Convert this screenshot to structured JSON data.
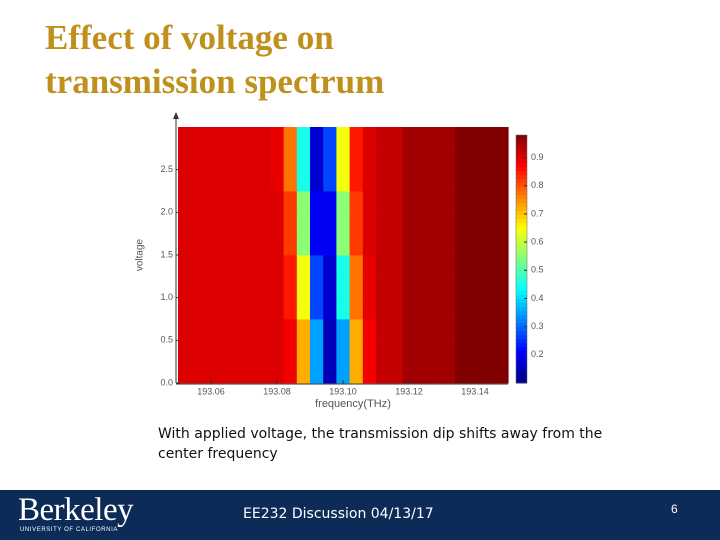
{
  "title": "Effect of voltage on transmission spectrum",
  "chart_data": {
    "type": "heatmap",
    "xlabel": "frequency(THz)",
    "ylabel": "voltage",
    "x": [
      193.052,
      193.056,
      193.06,
      193.064,
      193.068,
      193.072,
      193.076,
      193.08,
      193.084,
      193.088,
      193.092,
      193.096,
      193.1,
      193.104,
      193.108,
      193.112,
      193.116,
      193.12,
      193.124,
      193.128,
      193.132,
      193.136,
      193.14,
      193.144,
      193.148
    ],
    "y": [
      0.125,
      0.375,
      0.625,
      0.875,
      1.125,
      1.375,
      1.625,
      1.875,
      2.125,
      2.375,
      2.625,
      2.875
    ],
    "z": [
      [
        0.9,
        0.9,
        0.9,
        0.9,
        0.9,
        0.9,
        0.9,
        0.9,
        0.88,
        0.72,
        0.35,
        0.15,
        0.35,
        0.72,
        0.88,
        0.92,
        0.92,
        0.95,
        0.95,
        0.95,
        0.95,
        0.98,
        0.98,
        0.98,
        0.98
      ],
      [
        0.9,
        0.9,
        0.9,
        0.9,
        0.9,
        0.9,
        0.9,
        0.9,
        0.88,
        0.72,
        0.35,
        0.15,
        0.35,
        0.72,
        0.88,
        0.92,
        0.92,
        0.95,
        0.95,
        0.95,
        0.95,
        0.98,
        0.98,
        0.98,
        0.98
      ],
      [
        0.9,
        0.9,
        0.9,
        0.9,
        0.9,
        0.9,
        0.9,
        0.9,
        0.88,
        0.72,
        0.35,
        0.15,
        0.35,
        0.72,
        0.88,
        0.92,
        0.92,
        0.95,
        0.95,
        0.95,
        0.95,
        0.98,
        0.98,
        0.98,
        0.98
      ],
      [
        0.9,
        0.9,
        0.9,
        0.9,
        0.9,
        0.9,
        0.9,
        0.9,
        0.85,
        0.64,
        0.27,
        0.17,
        0.45,
        0.77,
        0.89,
        0.92,
        0.92,
        0.95,
        0.95,
        0.95,
        0.95,
        0.98,
        0.98,
        0.98,
        0.98
      ],
      [
        0.9,
        0.9,
        0.9,
        0.9,
        0.9,
        0.9,
        0.9,
        0.9,
        0.85,
        0.64,
        0.27,
        0.17,
        0.45,
        0.77,
        0.89,
        0.92,
        0.92,
        0.95,
        0.95,
        0.95,
        0.95,
        0.98,
        0.98,
        0.98,
        0.98
      ],
      [
        0.9,
        0.9,
        0.9,
        0.9,
        0.9,
        0.9,
        0.9,
        0.9,
        0.85,
        0.64,
        0.27,
        0.17,
        0.45,
        0.77,
        0.89,
        0.92,
        0.92,
        0.95,
        0.95,
        0.95,
        0.95,
        0.98,
        0.98,
        0.98,
        0.98
      ],
      [
        0.9,
        0.9,
        0.9,
        0.9,
        0.9,
        0.9,
        0.9,
        0.9,
        0.82,
        0.55,
        0.2,
        0.2,
        0.55,
        0.82,
        0.9,
        0.92,
        0.92,
        0.95,
        0.95,
        0.95,
        0.95,
        0.98,
        0.98,
        0.98,
        0.98
      ],
      [
        0.9,
        0.9,
        0.9,
        0.9,
        0.9,
        0.9,
        0.9,
        0.9,
        0.82,
        0.55,
        0.2,
        0.2,
        0.55,
        0.82,
        0.9,
        0.92,
        0.92,
        0.95,
        0.95,
        0.95,
        0.95,
        0.98,
        0.98,
        0.98,
        0.98
      ],
      [
        0.9,
        0.9,
        0.9,
        0.9,
        0.9,
        0.9,
        0.9,
        0.9,
        0.82,
        0.55,
        0.2,
        0.2,
        0.55,
        0.82,
        0.9,
        0.92,
        0.92,
        0.95,
        0.95,
        0.95,
        0.95,
        0.98,
        0.98,
        0.98,
        0.98
      ],
      [
        0.9,
        0.9,
        0.9,
        0.9,
        0.9,
        0.9,
        0.9,
        0.89,
        0.77,
        0.45,
        0.17,
        0.27,
        0.64,
        0.85,
        0.9,
        0.92,
        0.92,
        0.95,
        0.95,
        0.95,
        0.95,
        0.98,
        0.98,
        0.98,
        0.98
      ],
      [
        0.9,
        0.9,
        0.9,
        0.9,
        0.9,
        0.9,
        0.9,
        0.89,
        0.77,
        0.45,
        0.17,
        0.27,
        0.64,
        0.85,
        0.9,
        0.92,
        0.92,
        0.95,
        0.95,
        0.95,
        0.95,
        0.98,
        0.98,
        0.98,
        0.98
      ],
      [
        0.9,
        0.9,
        0.9,
        0.9,
        0.9,
        0.9,
        0.9,
        0.89,
        0.77,
        0.45,
        0.17,
        0.27,
        0.64,
        0.85,
        0.9,
        0.92,
        0.92,
        0.95,
        0.95,
        0.95,
        0.95,
        0.98,
        0.98,
        0.98,
        0.98
      ]
    ],
    "xlim": [
      193.05,
      193.15
    ],
    "ylim": [
      0,
      3
    ],
    "xticks": [
      193.06,
      193.08,
      {
        "value": 193.1,
        "label": "193.10"
      },
      193.12,
      193.14
    ],
    "yticks": [
      {
        "value": 0,
        "label": "0.0"
      },
      0.5,
      {
        "value": 1,
        "label": "1.0"
      },
      1.5,
      {
        "value": 2,
        "label": "2.0"
      },
      2.5
    ],
    "colormap": "jet",
    "clim": [
      0.1,
      0.98
    ],
    "cticks": [
      0.2,
      0.3,
      0.4,
      0.5,
      0.6,
      0.7,
      0.8,
      0.9
    ]
  },
  "caption": "With applied voltage, the transmission dip shifts away from the center frequency",
  "footer": {
    "logo": "Berkeley",
    "logo_sub": "UNIVERSITY OF CALIFORNIA",
    "text": "EE232 Discussion 04/13/17",
    "page": "6"
  }
}
